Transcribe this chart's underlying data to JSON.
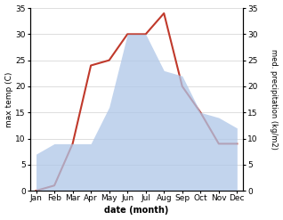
{
  "months": [
    "Jan",
    "Feb",
    "Mar",
    "Apr",
    "May",
    "Jun",
    "Jul",
    "Aug",
    "Sep",
    "Oct",
    "Nov",
    "Dec"
  ],
  "temperature": [
    0,
    1,
    9,
    24,
    25,
    30,
    30,
    34,
    20,
    15,
    9,
    9
  ],
  "precipitation": [
    7,
    9,
    9,
    9,
    16,
    30,
    30,
    23,
    22,
    15,
    14,
    12
  ],
  "temp_color": "#c0392b",
  "precip_color": "#aec6e8",
  "bg_color": "#ffffff",
  "ylim_left": [
    0,
    35
  ],
  "ylim_right": [
    0,
    35
  ],
  "xlabel": "date (month)",
  "ylabel_left": "max temp (C)",
  "ylabel_right": "med. precipitation (kg/m2)",
  "tick_values": [
    0,
    5,
    10,
    15,
    20,
    25,
    30,
    35
  ],
  "grid_color": "#d0d0d0",
  "figsize": [
    3.18,
    2.47
  ],
  "dpi": 100
}
